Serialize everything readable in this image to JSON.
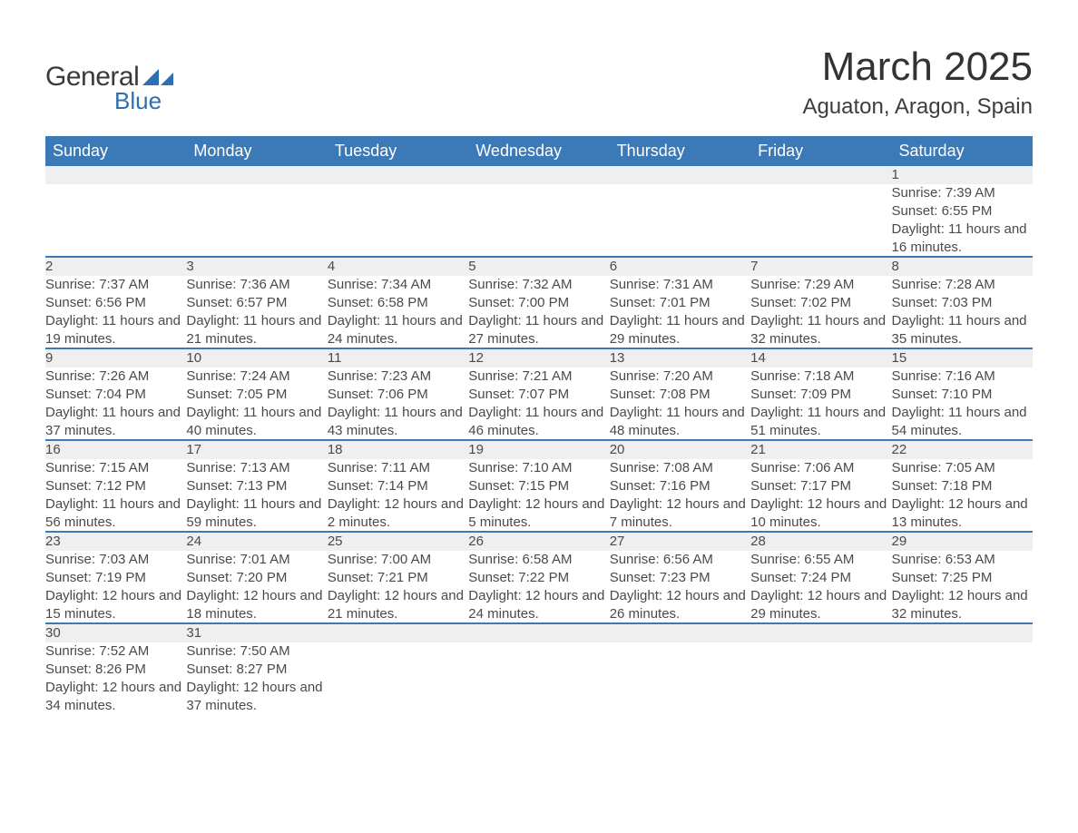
{
  "logo": {
    "text_general": "General",
    "text_blue": "Blue",
    "mark_color": "#2c6fb2"
  },
  "title": {
    "month": "March 2025",
    "location": "Aguaton, Aragon, Spain"
  },
  "colors": {
    "header_bg": "#3b79b7",
    "header_text": "#ffffff",
    "daynum_bg": "#efefef",
    "divider": "#3b79b7",
    "body_text": "#4a4a4a",
    "daynum_text": "#555555",
    "background": "#ffffff"
  },
  "typography": {
    "month_title_fontsize": 44,
    "location_fontsize": 24,
    "weekday_fontsize": 18,
    "daynum_fontsize": 17,
    "body_fontsize": 15
  },
  "weekdays": [
    "Sunday",
    "Monday",
    "Tuesday",
    "Wednesday",
    "Thursday",
    "Friday",
    "Saturday"
  ],
  "labels": {
    "sunrise": "Sunrise:",
    "sunset": "Sunset:",
    "daylight": "Daylight:"
  },
  "weeks": [
    [
      null,
      null,
      null,
      null,
      null,
      null,
      {
        "day": "1",
        "sunrise": "7:39 AM",
        "sunset": "6:55 PM",
        "daylight": "11 hours and 16 minutes."
      }
    ],
    [
      {
        "day": "2",
        "sunrise": "7:37 AM",
        "sunset": "6:56 PM",
        "daylight": "11 hours and 19 minutes."
      },
      {
        "day": "3",
        "sunrise": "7:36 AM",
        "sunset": "6:57 PM",
        "daylight": "11 hours and 21 minutes."
      },
      {
        "day": "4",
        "sunrise": "7:34 AM",
        "sunset": "6:58 PM",
        "daylight": "11 hours and 24 minutes."
      },
      {
        "day": "5",
        "sunrise": "7:32 AM",
        "sunset": "7:00 PM",
        "daylight": "11 hours and 27 minutes."
      },
      {
        "day": "6",
        "sunrise": "7:31 AM",
        "sunset": "7:01 PM",
        "daylight": "11 hours and 29 minutes."
      },
      {
        "day": "7",
        "sunrise": "7:29 AM",
        "sunset": "7:02 PM",
        "daylight": "11 hours and 32 minutes."
      },
      {
        "day": "8",
        "sunrise": "7:28 AM",
        "sunset": "7:03 PM",
        "daylight": "11 hours and 35 minutes."
      }
    ],
    [
      {
        "day": "9",
        "sunrise": "7:26 AM",
        "sunset": "7:04 PM",
        "daylight": "11 hours and 37 minutes."
      },
      {
        "day": "10",
        "sunrise": "7:24 AM",
        "sunset": "7:05 PM",
        "daylight": "11 hours and 40 minutes."
      },
      {
        "day": "11",
        "sunrise": "7:23 AM",
        "sunset": "7:06 PM",
        "daylight": "11 hours and 43 minutes."
      },
      {
        "day": "12",
        "sunrise": "7:21 AM",
        "sunset": "7:07 PM",
        "daylight": "11 hours and 46 minutes."
      },
      {
        "day": "13",
        "sunrise": "7:20 AM",
        "sunset": "7:08 PM",
        "daylight": "11 hours and 48 minutes."
      },
      {
        "day": "14",
        "sunrise": "7:18 AM",
        "sunset": "7:09 PM",
        "daylight": "11 hours and 51 minutes."
      },
      {
        "day": "15",
        "sunrise": "7:16 AM",
        "sunset": "7:10 PM",
        "daylight": "11 hours and 54 minutes."
      }
    ],
    [
      {
        "day": "16",
        "sunrise": "7:15 AM",
        "sunset": "7:12 PM",
        "daylight": "11 hours and 56 minutes."
      },
      {
        "day": "17",
        "sunrise": "7:13 AM",
        "sunset": "7:13 PM",
        "daylight": "11 hours and 59 minutes."
      },
      {
        "day": "18",
        "sunrise": "7:11 AM",
        "sunset": "7:14 PM",
        "daylight": "12 hours and 2 minutes."
      },
      {
        "day": "19",
        "sunrise": "7:10 AM",
        "sunset": "7:15 PM",
        "daylight": "12 hours and 5 minutes."
      },
      {
        "day": "20",
        "sunrise": "7:08 AM",
        "sunset": "7:16 PM",
        "daylight": "12 hours and 7 minutes."
      },
      {
        "day": "21",
        "sunrise": "7:06 AM",
        "sunset": "7:17 PM",
        "daylight": "12 hours and 10 minutes."
      },
      {
        "day": "22",
        "sunrise": "7:05 AM",
        "sunset": "7:18 PM",
        "daylight": "12 hours and 13 minutes."
      }
    ],
    [
      {
        "day": "23",
        "sunrise": "7:03 AM",
        "sunset": "7:19 PM",
        "daylight": "12 hours and 15 minutes."
      },
      {
        "day": "24",
        "sunrise": "7:01 AM",
        "sunset": "7:20 PM",
        "daylight": "12 hours and 18 minutes."
      },
      {
        "day": "25",
        "sunrise": "7:00 AM",
        "sunset": "7:21 PM",
        "daylight": "12 hours and 21 minutes."
      },
      {
        "day": "26",
        "sunrise": "6:58 AM",
        "sunset": "7:22 PM",
        "daylight": "12 hours and 24 minutes."
      },
      {
        "day": "27",
        "sunrise": "6:56 AM",
        "sunset": "7:23 PM",
        "daylight": "12 hours and 26 minutes."
      },
      {
        "day": "28",
        "sunrise": "6:55 AM",
        "sunset": "7:24 PM",
        "daylight": "12 hours and 29 minutes."
      },
      {
        "day": "29",
        "sunrise": "6:53 AM",
        "sunset": "7:25 PM",
        "daylight": "12 hours and 32 minutes."
      }
    ],
    [
      {
        "day": "30",
        "sunrise": "7:52 AM",
        "sunset": "8:26 PM",
        "daylight": "12 hours and 34 minutes."
      },
      {
        "day": "31",
        "sunrise": "7:50 AM",
        "sunset": "8:27 PM",
        "daylight": "12 hours and 37 minutes."
      },
      null,
      null,
      null,
      null,
      null
    ]
  ]
}
